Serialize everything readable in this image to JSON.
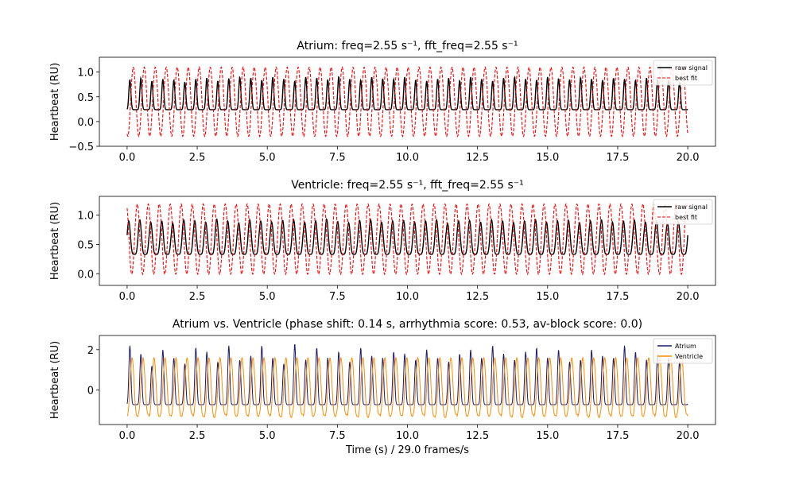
{
  "chart_data": [
    {
      "type": "line",
      "title": "Atrium: freq=2.55 s⁻¹, fft_freq=2.55 s⁻¹",
      "xlabel": "",
      "ylabel": "Heartbeat (RU)",
      "xlim": [
        -0.99,
        20.99
      ],
      "ylim": [
        -0.5,
        1.3
      ],
      "xticks": [
        "0.0",
        "2.5",
        "5.0",
        "7.5",
        "10.0",
        "12.5",
        "15.0",
        "17.5",
        "20.0"
      ],
      "yticks": [
        "−0.5",
        "0.0",
        "0.5",
        "1.0"
      ],
      "legend_position": "top-right",
      "frequency_hz": 2.55,
      "x_range": [
        0,
        20
      ],
      "series": [
        {
          "name": "raw signal",
          "color": "#000000",
          "style": "solid",
          "baseline": 0.24,
          "peaks": [
            0.85,
            0.88,
            0.82,
            0.86,
            0.84,
            0.8,
            0.86,
            0.88,
            0.82,
            0.87,
            0.9,
            0.88,
            0.84,
            0.9,
            0.86,
            0.82,
            0.9,
            0.88,
            0.85,
            0.91,
            0.86,
            0.84,
            0.9,
            0.87,
            0.86,
            0.9,
            0.84,
            0.82,
            0.86,
            0.88,
            0.83,
            0.9,
            0.86,
            0.82,
            0.88,
            0.9,
            0.86,
            0.84,
            0.9,
            0.87,
            0.85,
            0.89,
            0.86,
            0.84,
            0.88,
            0.86,
            0.84,
            0.88,
            0.85,
            0.84,
            0.8
          ]
        },
        {
          "name": "best fit",
          "color": "#ff0000",
          "style": "dashed",
          "center": 0.4,
          "amplitude": 0.7,
          "phase_at_zero": -0.25
        }
      ]
    },
    {
      "type": "line",
      "title": "Ventricle: freq=2.55 s⁻¹, fft_freq=2.55 s⁻¹",
      "xlabel": "",
      "ylabel": "Heartbeat (RU)",
      "xlim": [
        -0.99,
        20.99
      ],
      "ylim": [
        -0.2,
        1.32
      ],
      "xticks": [
        "0.0",
        "2.5",
        "5.0",
        "7.5",
        "10.0",
        "12.5",
        "15.0",
        "17.5",
        "20.0"
      ],
      "yticks": [
        "0.0",
        "0.5",
        "1.0"
      ],
      "legend_position": "top-right",
      "frequency_hz": 2.55,
      "x_range": [
        0,
        20
      ],
      "series": [
        {
          "name": "raw signal",
          "color": "#000000",
          "style": "solid",
          "trough": 0.33,
          "peaks": [
            0.9,
            0.92,
            0.88,
            0.9,
            0.86,
            0.92,
            0.9,
            0.88,
            0.93,
            0.9,
            0.87,
            0.92,
            0.9,
            0.88,
            0.91,
            0.92,
            0.88,
            0.9,
            0.93,
            0.89,
            0.87,
            0.91,
            0.92,
            0.88,
            0.9,
            0.91,
            0.88,
            0.9,
            0.92,
            0.86,
            0.9,
            0.91,
            0.88,
            0.92,
            0.9,
            0.87,
            0.9,
            0.92,
            0.88,
            0.9,
            0.91,
            0.87,
            0.9,
            0.92,
            0.88,
            0.9,
            0.91,
            0.88,
            0.9,
            0.86,
            0.88
          ],
          "x_end_value": 0.65
        },
        {
          "name": "best fit",
          "color": "#ff0000",
          "style": "dashed",
          "center": 0.59,
          "amplitude": 0.6,
          "phase_at_zero": 1.12
        }
      ]
    },
    {
      "type": "line",
      "title": "Atrium vs. Ventricle (phase shift: 0.14 s, arrhythmia score:  0.53, av-block score: 0.0)",
      "xlabel": "Time (s) / 29.0 frames/s",
      "ylabel": "Heartbeat (RU)",
      "xlim": [
        -0.99,
        20.99
      ],
      "ylim": [
        -1.7,
        2.7
      ],
      "xticks": [
        "0.0",
        "2.5",
        "5.0",
        "7.5",
        "10.0",
        "12.5",
        "15.0",
        "17.5",
        "20.0"
      ],
      "yticks": [
        "0",
        "2"
      ],
      "legend_position": "top-right",
      "frequency_hz": 2.55,
      "x_range": [
        0,
        20
      ],
      "series": [
        {
          "name": "Atrium",
          "color": "#191970",
          "style": "solid",
          "baseline": -0.72,
          "peaks": [
            2.2,
            1.8,
            1.2,
            2.0,
            1.6,
            1.3,
            2.1,
            1.9,
            1.4,
            2.2,
            1.5,
            1.7,
            2.2,
            1.6,
            1.3,
            2.3,
            1.5,
            2.1,
            1.6,
            1.9,
            1.4,
            2.1,
            1.7,
            1.6,
            1.9,
            1.8,
            1.5,
            2.0,
            1.6,
            1.4,
            1.8,
            2.0,
            1.6,
            2.2,
            1.8,
            1.5,
            1.9,
            2.1,
            1.6,
            2.0,
            1.4,
            1.5,
            2.0,
            1.7,
            1.6,
            2.2,
            1.9,
            1.5,
            1.8,
            1.6,
            1.4
          ]
        },
        {
          "name": "Ventricle",
          "color": "#ff8c00",
          "style": "solid",
          "peak": 1.6,
          "troughs": [
            -1.3,
            -1.2,
            -1.3,
            -1.25,
            -1.3,
            -1.2,
            -1.3,
            -1.35,
            -1.2,
            -1.3,
            -1.25,
            -1.3,
            -1.2,
            -1.3,
            -1.35,
            -1.2,
            -1.3,
            -1.25,
            -1.3,
            -1.2,
            -1.3,
            -1.35,
            -1.2,
            -1.3,
            -1.25,
            -1.3,
            -1.2,
            -1.3,
            -1.35,
            -1.2,
            -1.3,
            -1.25,
            -1.3,
            -1.2,
            -1.3,
            -1.35,
            -1.2,
            -1.3,
            -1.25,
            -1.3,
            -1.2,
            -1.3,
            -1.35,
            -1.2,
            -1.3,
            -1.25,
            -1.3,
            -1.2,
            -1.3,
            -1.35,
            -1.2
          ]
        }
      ]
    }
  ]
}
